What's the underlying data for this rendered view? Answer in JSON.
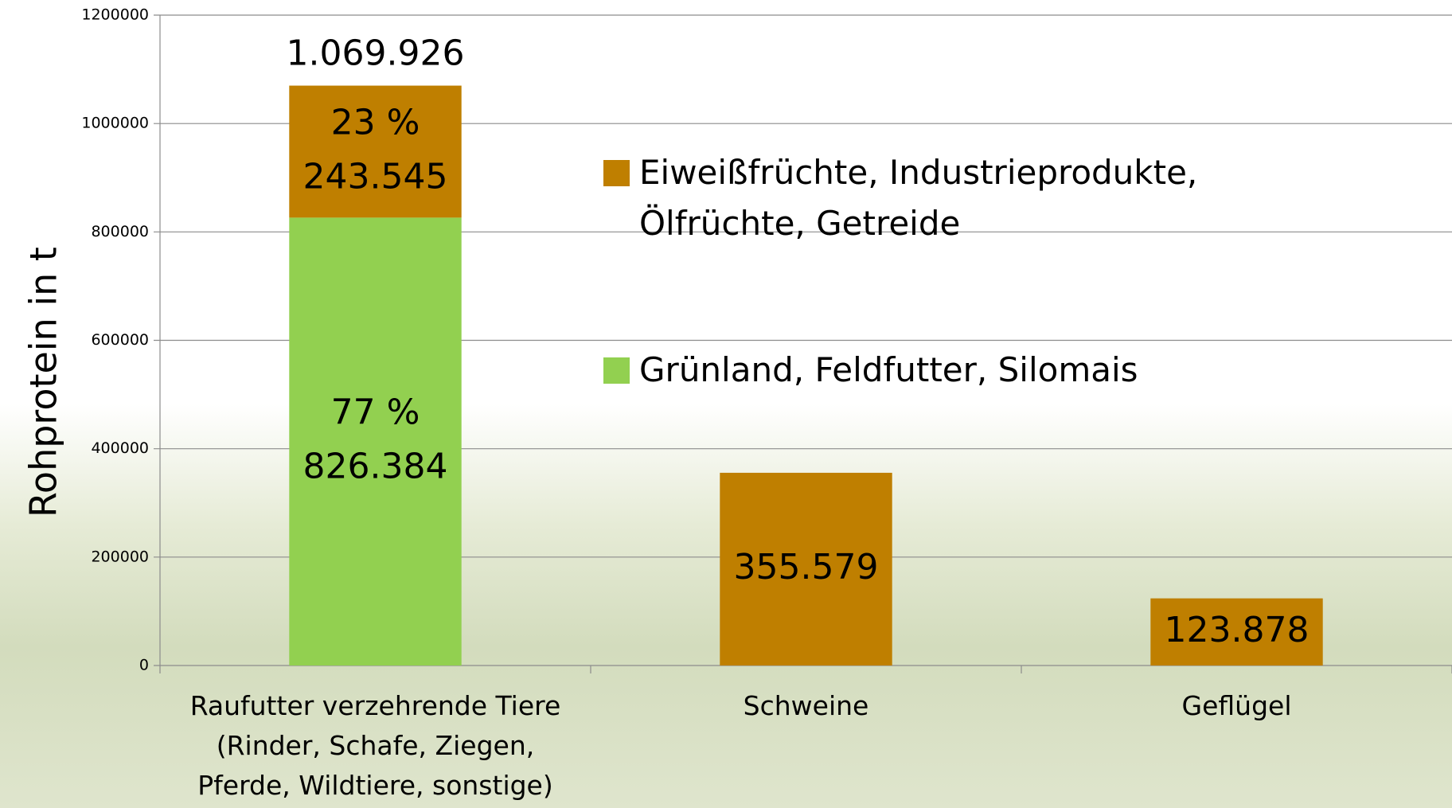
{
  "chart_data": {
    "type": "stacked_bar",
    "y_label": "Rohprotein in t",
    "categories": [
      "Raufutter verzehrende Tiere\n(Rinder, Schafe, Ziegen,\nPferde, Wildtiere, sonstige)",
      "Schweine",
      "Geflügel"
    ],
    "series": [
      {
        "name": "Grünland, Feldfutter, Silomais",
        "color": "#92d050",
        "values": [
          826384,
          null,
          null
        ],
        "value_labels": [
          "826.384",
          null,
          null
        ],
        "share_labels": [
          "77 %",
          null,
          null
        ]
      },
      {
        "name": "Eiweißfrüchte, Industrieprodukte, Ölfrüchte, Getreide",
        "color": "#bf7f00",
        "values": [
          243545,
          355579,
          123878
        ],
        "value_labels": [
          "243.545",
          "355.579",
          "123.878"
        ],
        "share_labels": [
          "23 %",
          null,
          null
        ]
      }
    ],
    "total_labels": [
      "1.069.926",
      null,
      null
    ],
    "ylim": [
      0,
      1200000
    ],
    "yticks": [
      0,
      200000,
      400000,
      600000,
      800000,
      1000000,
      1200000
    ],
    "grid": true
  }
}
